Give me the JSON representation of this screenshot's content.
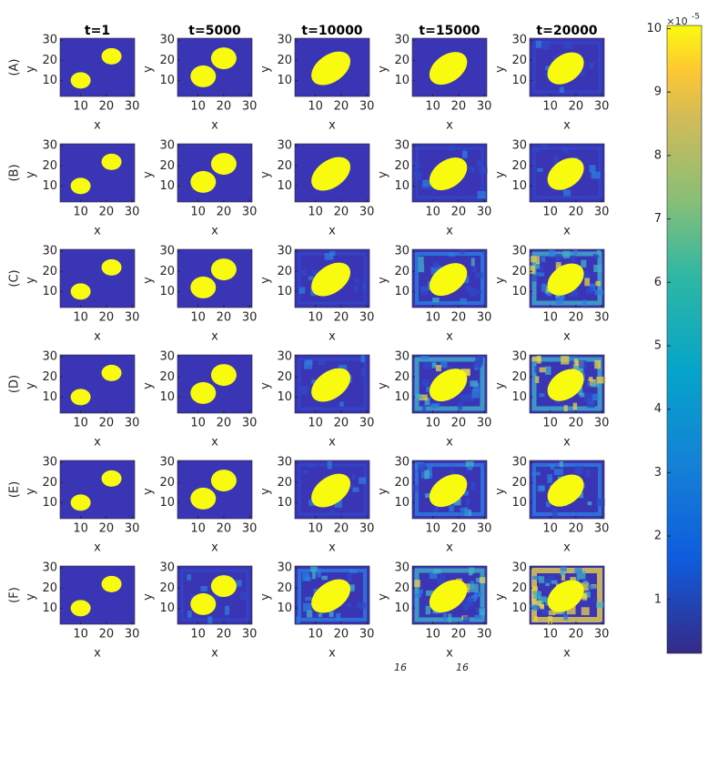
{
  "chart_data": {
    "type": "heatmap-grid",
    "column_titles": [
      "t=1",
      "t=5000",
      "t=10000",
      "t=15000",
      "t=20000"
    ],
    "row_labels": [
      "(A)",
      "(B)",
      "(C)",
      "(D)",
      "(E)",
      "(F)"
    ],
    "xlabel": "x",
    "ylabel": "y",
    "xlim": [
      2,
      31
    ],
    "ylim": [
      2,
      31
    ],
    "xticks": [
      10,
      20,
      30
    ],
    "yticks": [
      10,
      20,
      30
    ],
    "colorbar": {
      "clim": [
        0.15,
        10.05
      ],
      "ticks": [
        1,
        2,
        3,
        4,
        5,
        6,
        7,
        8,
        9,
        10
      ],
      "exponent_base": "×10",
      "exponent_power": "-5"
    },
    "footer_fragments": [
      "16",
      "16"
    ]
  }
}
